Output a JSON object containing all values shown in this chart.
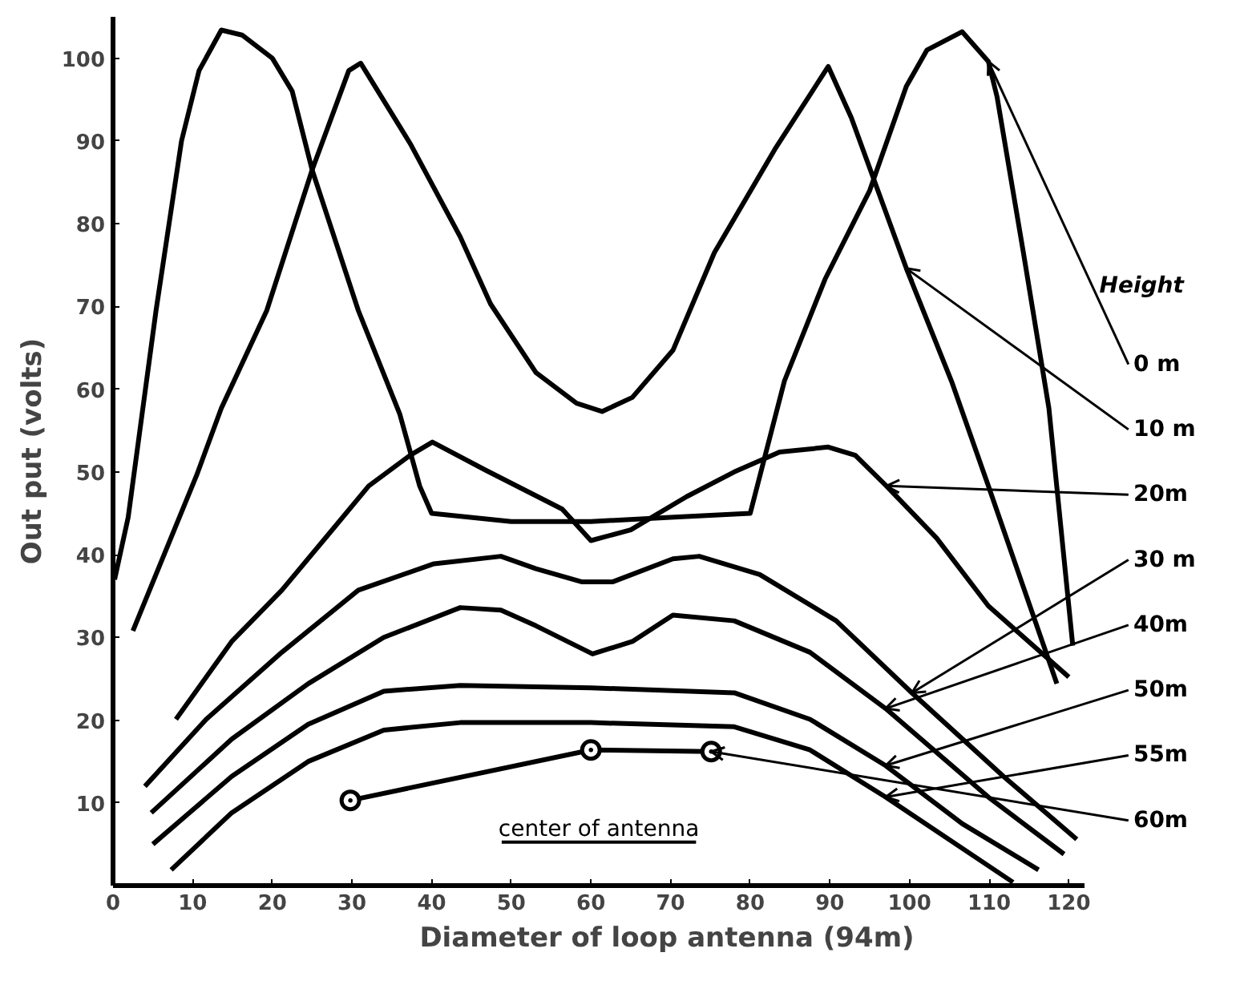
{
  "chart_data": {
    "type": "line",
    "xlabel": "Diameter of loop antenna (94m)",
    "ylabel": "Out put (volts)",
    "legend_title": "Height",
    "xlim": [
      0,
      122
    ],
    "ylim": [
      0,
      105
    ],
    "xticks": [
      0,
      10,
      20,
      30,
      40,
      50,
      60,
      70,
      80,
      90,
      100,
      110,
      120
    ],
    "yticks": [
      10,
      20,
      30,
      40,
      50,
      60,
      70,
      80,
      90,
      100
    ],
    "grid": false,
    "annotations": [
      "center of antenna"
    ],
    "series": [
      {
        "name": "0 m",
        "color": "#000000",
        "x": [
          0.2,
          1.9,
          5.4,
          8.6,
          10.8,
          13.6,
          16.2,
          20,
          22.5,
          25,
          30.8,
          36,
          38.5,
          40,
          50,
          60,
          70,
          80,
          84.3,
          89.4,
          95,
          99.6,
          102.2,
          106.6,
          109.9,
          111,
          114.3,
          117.5,
          120.5
        ],
        "values": [
          37,
          44.5,
          69.5,
          90,
          98.5,
          103.4,
          102.8,
          100,
          96,
          86.5,
          69.5,
          57,
          48.3,
          45,
          44,
          44,
          44.5,
          45,
          61,
          73.3,
          84,
          96.6,
          101,
          103.2,
          99.6,
          95.3,
          76.5,
          57.7,
          29
        ]
      },
      {
        "name": "10 m",
        "color": "#000000",
        "x": [
          2.5,
          10.5,
          13.6,
          19.3,
          25,
          29.6,
          31.1,
          37.3,
          43.6,
          47.4,
          53.1,
          58.2,
          61.4,
          65.2,
          70.3,
          75.5,
          83.1,
          89.8,
          92.7,
          99.6,
          105.3,
          109.9,
          118.5
        ],
        "values": [
          30.8,
          49.6,
          57.7,
          69.5,
          86.5,
          98.5,
          99.4,
          89.7,
          78.4,
          70.3,
          62,
          58.3,
          57.3,
          59,
          64.7,
          76.5,
          89,
          99,
          92.8,
          74.6,
          60.9,
          48.3,
          24.4
        ]
      },
      {
        "name": "20m",
        "color": "#000000",
        "x": [
          7.9,
          14.9,
          21.2,
          27.7,
          32.1,
          37.3,
          40.1,
          46.8,
          56.4,
          60,
          65,
          72,
          78,
          83.7,
          89.8,
          93.2,
          97.1,
          103.4,
          109.9,
          120
        ],
        "values": [
          20.1,
          29.5,
          35.7,
          43.2,
          48.3,
          52,
          53.6,
          50.2,
          45.5,
          41.7,
          43,
          47,
          50,
          52.4,
          53,
          52,
          48.3,
          42,
          33.8,
          25.2
        ]
      },
      {
        "name": "30 m",
        "color": "#000000",
        "x": [
          4,
          11.7,
          21.2,
          30.8,
          40.3,
          48.7,
          53.1,
          58.9,
          62.7,
          70.3,
          73.6,
          81.2,
          90.8,
          100.3,
          111.8,
          121
        ],
        "values": [
          12,
          20.1,
          28.2,
          35.7,
          38.9,
          39.8,
          38.3,
          36.7,
          36.7,
          39.5,
          39.8,
          37.6,
          32,
          23.3,
          13.2,
          5.6
        ]
      },
      {
        "name": "40m",
        "color": "#000000",
        "x": [
          4.8,
          14.9,
          24.5,
          34,
          43.6,
          48.7,
          53.1,
          60.2,
          65.2,
          70.3,
          78,
          87.5,
          97,
          109.9,
          119.4
        ],
        "values": [
          8.8,
          17.7,
          24.4,
          30,
          33.6,
          33.3,
          31.4,
          28,
          29.5,
          32.7,
          32,
          28.2,
          21.4,
          10.7,
          3.8
        ]
      },
      {
        "name": "50m",
        "color": "#000000",
        "x": [
          5,
          14.9,
          24.5,
          34,
          43.6,
          60,
          78,
          87.5,
          97,
          106.6,
          116.2
        ],
        "values": [
          5,
          13.2,
          19.5,
          23.5,
          24.2,
          23.9,
          23.3,
          20.1,
          14.5,
          7.5,
          1.9
        ]
      },
      {
        "name": "55m",
        "color": "#000000",
        "x": [
          7.3,
          14.9,
          24.5,
          34,
          43.6,
          60,
          78,
          87.5,
          97,
          113
        ],
        "values": [
          1.9,
          8.8,
          15,
          18.8,
          19.7,
          19.7,
          19.2,
          16.4,
          10.7,
          0.4
        ]
      },
      {
        "name": "60m",
        "color": "#000000",
        "marker": "circle",
        "x": [
          29.8,
          60,
          75.1
        ],
        "values": [
          10.3,
          16.4,
          16.2
        ]
      }
    ]
  }
}
